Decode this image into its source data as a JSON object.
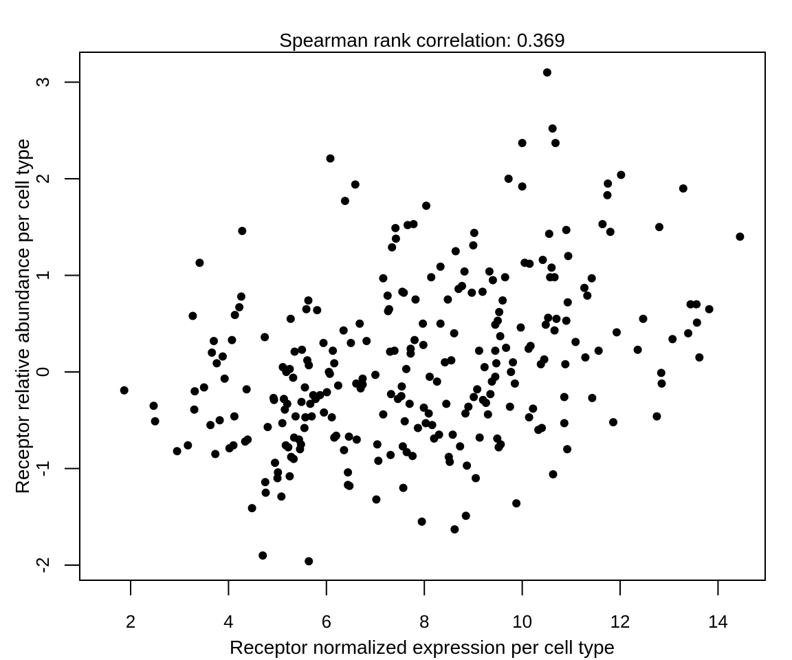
{
  "chart_data": {
    "type": "scatter",
    "title": "Spearman rank correlation: 0.369",
    "xlabel": "Receptor normalized expression per cell type",
    "ylabel": "Receptor relative abundance per cell type",
    "xlim": [
      1,
      15
    ],
    "ylim": [
      -2.2,
      3.3
    ],
    "xticks": [
      "2",
      "4",
      "6",
      "8",
      "10",
      "12",
      "14"
    ],
    "yticks": [
      "-2",
      "-1",
      "0",
      "1",
      "2",
      "3"
    ],
    "grid": false,
    "legend": "none",
    "marker_color": "#000000",
    "points": [
      [
        1.87,
        -0.19
      ],
      [
        2.47,
        -0.35
      ],
      [
        2.5,
        -0.51
      ],
      [
        2.95,
        -0.82
      ],
      [
        3.17,
        -0.76
      ],
      [
        3.27,
        0.58
      ],
      [
        3.31,
        -0.2
      ],
      [
        3.3,
        -0.39
      ],
      [
        3.41,
        1.13
      ],
      [
        3.5,
        -0.16
      ],
      [
        3.63,
        -0.55
      ],
      [
        3.66,
        0.2
      ],
      [
        3.7,
        0.32
      ],
      [
        3.73,
        -0.85
      ],
      [
        3.76,
        0.09
      ],
      [
        3.82,
        -0.5
      ],
      [
        3.88,
        0.16
      ],
      [
        3.92,
        -0.07
      ],
      [
        4.02,
        -0.79
      ],
      [
        4.07,
        0.33
      ],
      [
        4.1,
        -0.76
      ],
      [
        4.12,
        -0.46
      ],
      [
        4.13,
        0.59
      ],
      [
        4.22,
        0.67
      ],
      [
        4.26,
        0.78
      ],
      [
        4.28,
        1.46
      ],
      [
        4.34,
        -0.72
      ],
      [
        4.37,
        -0.18
      ],
      [
        4.39,
        -0.7
      ],
      [
        4.48,
        -1.41
      ],
      [
        4.7,
        -1.9
      ],
      [
        4.74,
        0.36
      ],
      [
        4.75,
        -1.14
      ],
      [
        4.76,
        -1.25
      ],
      [
        4.8,
        -0.57
      ],
      [
        4.92,
        -0.27
      ],
      [
        4.93,
        -0.29
      ],
      [
        4.95,
        -0.94
      ],
      [
        5.0,
        -1.1
      ],
      [
        5.01,
        -1.04
      ],
      [
        5.08,
        -1.29
      ],
      [
        5.1,
        -0.53
      ],
      [
        5.11,
        0.05
      ],
      [
        5.13,
        -0.28
      ],
      [
        5.15,
        -0.39
      ],
      [
        5.17,
        -0.76
      ],
      [
        5.18,
        0.0
      ],
      [
        5.2,
        -0.33
      ],
      [
        5.22,
        -0.78
      ],
      [
        5.25,
        0.03
      ],
      [
        5.25,
        -1.08
      ],
      [
        5.27,
        0.55
      ],
      [
        5.28,
        -0.88
      ],
      [
        5.32,
        -0.06
      ],
      [
        5.33,
        -0.9
      ],
      [
        5.34,
        -0.68
      ],
      [
        5.35,
        0.21
      ],
      [
        5.37,
        -0.46
      ],
      [
        5.44,
        -0.7
      ],
      [
        5.46,
        -0.8
      ],
      [
        5.48,
        -0.75
      ],
      [
        5.49,
        -0.31
      ],
      [
        5.5,
        0.23
      ],
      [
        5.55,
        -0.58
      ],
      [
        5.56,
        -0.16
      ],
      [
        5.57,
        -0.47
      ],
      [
        5.59,
        0.65
      ],
      [
        5.61,
        0.12
      ],
      [
        5.63,
        0.74
      ],
      [
        5.64,
        -1.96
      ],
      [
        5.64,
        0.07
      ],
      [
        5.67,
        -0.33
      ],
      [
        5.7,
        -0.46
      ],
      [
        5.73,
        -0.24
      ],
      [
        5.78,
        -0.28
      ],
      [
        5.81,
        0.64
      ],
      [
        5.87,
        -0.24
      ],
      [
        5.94,
        0.3
      ],
      [
        5.95,
        -0.42
      ],
      [
        6.01,
        -0.21
      ],
      [
        6.05,
        0.0
      ],
      [
        6.07,
        -0.02
      ],
      [
        6.08,
        2.21
      ],
      [
        6.11,
        -0.47
      ],
      [
        6.13,
        0.22
      ],
      [
        6.16,
        0.09
      ],
      [
        6.16,
        -0.68
      ],
      [
        6.2,
        -0.66
      ],
      [
        6.24,
        -0.14
      ],
      [
        6.35,
        0.43
      ],
      [
        6.36,
        -0.81
      ],
      [
        6.38,
        1.77
      ],
      [
        6.44,
        -1.04
      ],
      [
        6.44,
        -1.17
      ],
      [
        6.46,
        -0.67
      ],
      [
        6.47,
        -1.18
      ],
      [
        6.5,
        0.3
      ],
      [
        6.59,
        1.94
      ],
      [
        6.61,
        -0.12
      ],
      [
        6.62,
        -0.7
      ],
      [
        6.68,
        0.5
      ],
      [
        6.7,
        -0.17
      ],
      [
        6.74,
        -0.07
      ],
      [
        6.74,
        -0.13
      ],
      [
        6.82,
        0.32
      ],
      [
        7.0,
        -0.03
      ],
      [
        7.02,
        -1.32
      ],
      [
        7.04,
        -0.75
      ],
      [
        7.06,
        -0.92
      ],
      [
        7.16,
        0.97
      ],
      [
        7.16,
        -0.44
      ],
      [
        7.25,
        0.79
      ],
      [
        7.26,
        0.63
      ],
      [
        7.28,
        0.65
      ],
      [
        7.3,
        0.21
      ],
      [
        7.31,
        -0.86
      ],
      [
        7.32,
        -0.23
      ],
      [
        7.34,
        1.29
      ],
      [
        7.39,
        0.22
      ],
      [
        7.41,
        1.49
      ],
      [
        7.42,
        1.38
      ],
      [
        7.46,
        -0.28
      ],
      [
        7.53,
        -0.25
      ],
      [
        7.54,
        -0.15
      ],
      [
        7.55,
        0.83
      ],
      [
        7.56,
        -0.77
      ],
      [
        7.57,
        -1.2
      ],
      [
        7.58,
        0.82
      ],
      [
        7.6,
        -0.51
      ],
      [
        7.63,
        0.03
      ],
      [
        7.64,
        -0.83
      ],
      [
        7.66,
        1.52
      ],
      [
        7.7,
        -0.33
      ],
      [
        7.72,
        0.19
      ],
      [
        7.72,
        0.24
      ],
      [
        7.76,
        -0.87
      ],
      [
        7.78,
        1.53
      ],
      [
        7.8,
        0.33
      ],
      [
        7.82,
        0.75
      ],
      [
        7.87,
        -0.58
      ],
      [
        7.95,
        -1.55
      ],
      [
        7.97,
        0.5
      ],
      [
        7.98,
        0.28
      ],
      [
        7.99,
        -0.37
      ],
      [
        8.03,
        -0.53
      ],
      [
        8.04,
        1.72
      ],
      [
        8.09,
        -0.43
      ],
      [
        8.11,
        -0.05
      ],
      [
        8.14,
        0.98
      ],
      [
        8.16,
        -0.55
      ],
      [
        8.2,
        -0.69
      ],
      [
        8.26,
        -0.1
      ],
      [
        8.3,
        -0.65
      ],
      [
        8.33,
        1.09
      ],
      [
        8.33,
        0.5
      ],
      [
        8.42,
        0.1
      ],
      [
        8.45,
        -0.33
      ],
      [
        8.48,
        0.75
      ],
      [
        8.5,
        -0.88
      ],
      [
        8.52,
        -0.93
      ],
      [
        8.55,
        0.12
      ],
      [
        8.58,
        -0.65
      ],
      [
        8.61,
        0.4
      ],
      [
        8.62,
        -1.63
      ],
      [
        8.64,
        1.25
      ],
      [
        8.7,
        0.86
      ],
      [
        8.73,
        -0.77
      ],
      [
        8.77,
        0.89
      ],
      [
        8.82,
        1.04
      ],
      [
        8.84,
        -0.43
      ],
      [
        8.85,
        -1.49
      ],
      [
        8.87,
        -0.97
      ],
      [
        8.9,
        -0.36
      ],
      [
        8.97,
        0.82
      ],
      [
        9.0,
        1.31
      ],
      [
        9.01,
        -0.26
      ],
      [
        9.02,
        1.44
      ],
      [
        9.05,
        -1.1
      ],
      [
        9.08,
        -0.18
      ],
      [
        9.12,
        0.22
      ],
      [
        9.13,
        -0.68
      ],
      [
        9.19,
        0.83
      ],
      [
        9.2,
        -0.29
      ],
      [
        9.23,
        0.05
      ],
      [
        9.26,
        -0.32
      ],
      [
        9.3,
        -0.44
      ],
      [
        9.33,
        1.04
      ],
      [
        9.35,
        -0.23
      ],
      [
        9.38,
        -0.1
      ],
      [
        9.4,
        0.95
      ],
      [
        9.45,
        0.22
      ],
      [
        9.45,
        0.49
      ],
      [
        9.45,
        -0.05
      ],
      [
        9.47,
        0.09
      ],
      [
        9.49,
        -0.69
      ],
      [
        9.5,
        0.53
      ],
      [
        9.52,
        -0.78
      ],
      [
        9.53,
        0.62
      ],
      [
        9.55,
        0.37
      ],
      [
        9.56,
        -0.75
      ],
      [
        9.6,
        0.74
      ],
      [
        9.65,
        0.98
      ],
      [
        9.67,
        0.25
      ],
      [
        9.72,
        2.0
      ],
      [
        9.75,
        -0.36
      ],
      [
        9.77,
        0.0
      ],
      [
        9.81,
        0.1
      ],
      [
        9.85,
        -0.12
      ],
      [
        9.88,
        -1.36
      ],
      [
        9.97,
        0.46
      ],
      [
        10.0,
        2.37
      ],
      [
        10.0,
        1.92
      ],
      [
        10.05,
        1.13
      ],
      [
        10.13,
        0.24
      ],
      [
        10.14,
        -0.47
      ],
      [
        10.15,
        1.12
      ],
      [
        10.17,
        0.27
      ],
      [
        10.22,
        -0.38
      ],
      [
        10.33,
        -0.6
      ],
      [
        10.38,
        0.08
      ],
      [
        10.4,
        -0.58
      ],
      [
        10.42,
        1.16
      ],
      [
        10.45,
        0.13
      ],
      [
        10.48,
        0.49
      ],
      [
        10.51,
        3.1
      ],
      [
        10.53,
        0.56
      ],
      [
        10.55,
        1.43
      ],
      [
        10.57,
        0.98
      ],
      [
        10.6,
        1.08
      ],
      [
        10.62,
        2.52
      ],
      [
        10.63,
        -1.06
      ],
      [
        10.66,
        0.98
      ],
      [
        10.66,
        0.43
      ],
      [
        10.68,
        2.37
      ],
      [
        10.7,
        0.55
      ],
      [
        10.86,
        -0.26
      ],
      [
        10.86,
        -0.53
      ],
      [
        10.88,
        0.08
      ],
      [
        10.9,
        1.47
      ],
      [
        10.9,
        0.53
      ],
      [
        10.92,
        -0.8
      ],
      [
        10.93,
        0.72
      ],
      [
        10.94,
        1.2
      ],
      [
        11.09,
        0.31
      ],
      [
        11.27,
        0.87
      ],
      [
        11.29,
        0.15
      ],
      [
        11.33,
        0.79
      ],
      [
        11.42,
        0.97
      ],
      [
        11.43,
        -0.27
      ],
      [
        11.56,
        0.22
      ],
      [
        11.64,
        1.53
      ],
      [
        11.74,
        1.83
      ],
      [
        11.75,
        1.95
      ],
      [
        11.8,
        1.45
      ],
      [
        11.86,
        -0.52
      ],
      [
        11.93,
        0.41
      ],
      [
        12.02,
        2.04
      ],
      [
        12.36,
        0.23
      ],
      [
        12.47,
        0.55
      ],
      [
        12.75,
        -0.46
      ],
      [
        12.8,
        1.5
      ],
      [
        12.84,
        -0.01
      ],
      [
        12.85,
        -0.12
      ],
      [
        13.07,
        0.34
      ],
      [
        13.29,
        1.9
      ],
      [
        13.39,
        0.4
      ],
      [
        13.44,
        0.7
      ],
      [
        13.56,
        0.7
      ],
      [
        13.57,
        0.51
      ],
      [
        13.62,
        0.15
      ],
      [
        13.82,
        0.65
      ],
      [
        14.45,
        1.4
      ]
    ]
  }
}
